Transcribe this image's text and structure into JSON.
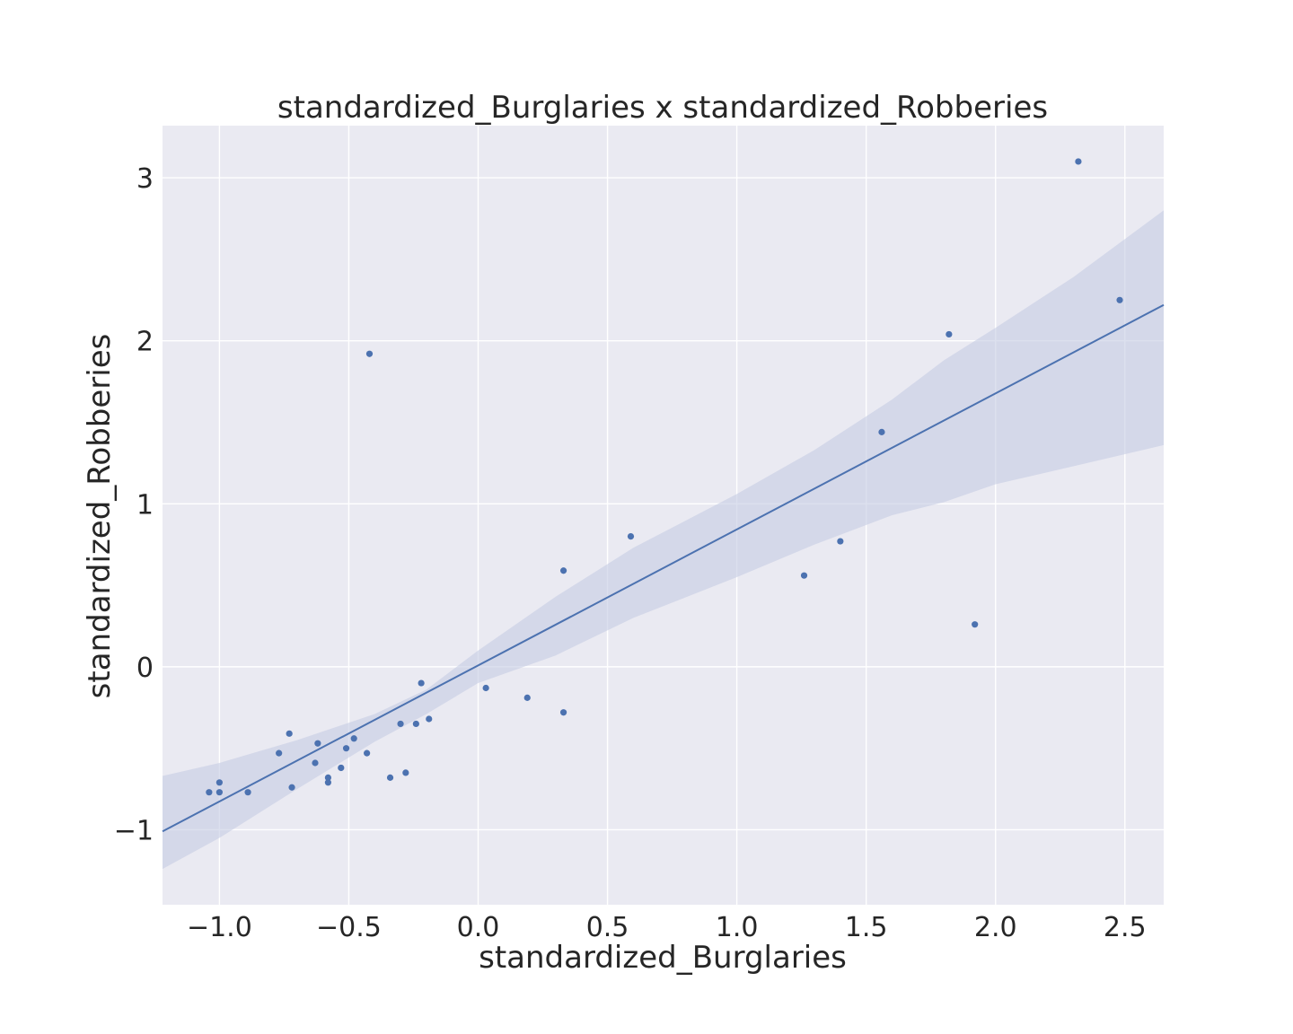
{
  "chart_data": {
    "type": "scatter",
    "title": "standardized_Burglaries x standardized_Robberies",
    "xlabel": "standardized_Burglaries",
    "ylabel": "standardized_Robberies",
    "xlim": [
      -1.22,
      2.65
    ],
    "ylim": [
      -1.46,
      3.32
    ],
    "xticks": [
      -1.0,
      -0.5,
      0.0,
      0.5,
      1.0,
      1.5,
      2.0,
      2.5
    ],
    "xtick_labels": [
      "−1.0",
      "−0.5",
      "0.0",
      "0.5",
      "1.0",
      "1.5",
      "2.0",
      "2.5"
    ],
    "yticks": [
      -1,
      0,
      1,
      2,
      3
    ],
    "ytick_labels": [
      "−1",
      "0",
      "1",
      "2",
      "3"
    ],
    "grid": true,
    "colors": {
      "background": "#eaeaf2",
      "grid": "#ffffff",
      "points": "#4c72b0",
      "line": "#4c72b0",
      "band": "#c4cce3"
    },
    "series": [
      {
        "points": [
          {
            "x": -1.04,
            "y": -0.77
          },
          {
            "x": -1.0,
            "y": -0.71
          },
          {
            "x": -1.0,
            "y": -0.77
          },
          {
            "x": -0.89,
            "y": -0.77
          },
          {
            "x": -0.77,
            "y": -0.53
          },
          {
            "x": -0.73,
            "y": -0.41
          },
          {
            "x": -0.72,
            "y": -0.74
          },
          {
            "x": -0.63,
            "y": -0.59
          },
          {
            "x": -0.62,
            "y": -0.47
          },
          {
            "x": -0.58,
            "y": -0.68
          },
          {
            "x": -0.58,
            "y": -0.71
          },
          {
            "x": -0.53,
            "y": -0.62
          },
          {
            "x": -0.51,
            "y": -0.5
          },
          {
            "x": -0.48,
            "y": -0.44
          },
          {
            "x": -0.43,
            "y": -0.53
          },
          {
            "x": -0.42,
            "y": 1.92
          },
          {
            "x": -0.34,
            "y": -0.68
          },
          {
            "x": -0.3,
            "y": -0.35
          },
          {
            "x": -0.28,
            "y": -0.65
          },
          {
            "x": -0.24,
            "y": -0.35
          },
          {
            "x": -0.22,
            "y": -0.1
          },
          {
            "x": -0.19,
            "y": -0.32
          },
          {
            "x": 0.03,
            "y": -0.13
          },
          {
            "x": 0.19,
            "y": -0.19
          },
          {
            "x": 0.33,
            "y": 0.59
          },
          {
            "x": 0.33,
            "y": -0.28
          },
          {
            "x": 0.59,
            "y": 0.8
          },
          {
            "x": 1.26,
            "y": 0.56
          },
          {
            "x": 1.4,
            "y": 0.77
          },
          {
            "x": 1.56,
            "y": 1.44
          },
          {
            "x": 1.82,
            "y": 2.04
          },
          {
            "x": 1.92,
            "y": 0.26
          },
          {
            "x": 2.32,
            "y": 3.1
          },
          {
            "x": 2.48,
            "y": 2.25
          }
        ]
      }
    ],
    "regression_line": {
      "x": [
        -1.22,
        2.65
      ],
      "y": [
        -1.01,
        2.22
      ]
    },
    "confidence_band": {
      "x": [
        -1.22,
        -1.0,
        -0.7,
        -0.4,
        -0.2,
        0.0,
        0.3,
        0.6,
        1.0,
        1.3,
        1.6,
        1.8,
        2.0,
        2.3,
        2.65
      ],
      "upper": [
        -0.67,
        -0.59,
        -0.45,
        -0.29,
        -0.14,
        0.1,
        0.43,
        0.73,
        1.06,
        1.33,
        1.64,
        1.88,
        2.08,
        2.39,
        2.8
      ],
      "lower": [
        -1.24,
        -1.05,
        -0.75,
        -0.46,
        -0.29,
        -0.1,
        0.07,
        0.3,
        0.55,
        0.75,
        0.93,
        1.01,
        1.12,
        1.23,
        1.36
      ]
    }
  }
}
